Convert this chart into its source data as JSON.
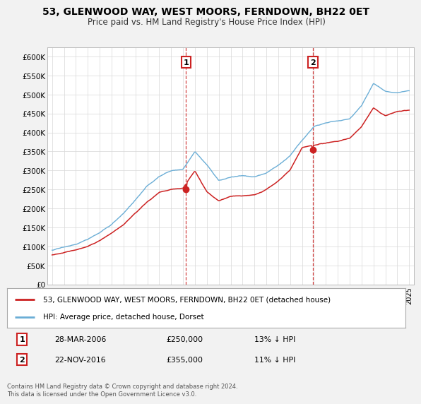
{
  "title": "53, GLENWOOD WAY, WEST MOORS, FERNDOWN, BH22 0ET",
  "subtitle": "Price paid vs. HM Land Registry's House Price Index (HPI)",
  "ylabel_ticks": [
    "£0",
    "£50K",
    "£100K",
    "£150K",
    "£200K",
    "£250K",
    "£300K",
    "£350K",
    "£400K",
    "£450K",
    "£500K",
    "£550K",
    "£600K"
  ],
  "ytick_values": [
    0,
    50000,
    100000,
    150000,
    200000,
    250000,
    300000,
    350000,
    400000,
    450000,
    500000,
    550000,
    600000
  ],
  "hpi_color": "#6baed6",
  "price_color": "#cc2222",
  "sale1_date": "28-MAR-2006",
  "sale1_price": 250000,
  "sale1_label": "13% ↓ HPI",
  "sale2_date": "22-NOV-2016",
  "sale2_price": 355000,
  "sale2_label": "11% ↓ HPI",
  "legend1": "53, GLENWOOD WAY, WEST MOORS, FERNDOWN, BH22 0ET (detached house)",
  "legend2": "HPI: Average price, detached house, Dorset",
  "footnote": "Contains HM Land Registry data © Crown copyright and database right 2024.\nThis data is licensed under the Open Government Licence v3.0.",
  "background_color": "#f2f2f2",
  "plot_bg_color": "#ffffff",
  "hpi_key_years": [
    1995,
    1996,
    1997,
    1998,
    1999,
    2000,
    2001,
    2002,
    2003,
    2004,
    2005,
    2006,
    2007,
    2008,
    2009,
    2010,
    2011,
    2012,
    2013,
    2014,
    2015,
    2016,
    2017,
    2018,
    2019,
    2020,
    2021,
    2022,
    2023,
    2024,
    2025
  ],
  "hpi_key_vals": [
    90000,
    97000,
    105000,
    118000,
    135000,
    158000,
    185000,
    220000,
    255000,
    280000,
    295000,
    300000,
    345000,
    310000,
    270000,
    278000,
    282000,
    278000,
    288000,
    308000,
    335000,
    375000,
    415000,
    425000,
    430000,
    435000,
    470000,
    530000,
    510000,
    505000,
    510000
  ],
  "price_key_years": [
    1995,
    1996,
    1997,
    1998,
    1999,
    2000,
    2001,
    2002,
    2003,
    2004,
    2005,
    2006,
    2007,
    2008,
    2009,
    2010,
    2011,
    2012,
    2013,
    2014,
    2015,
    2016,
    2017,
    2018,
    2019,
    2020,
    2021,
    2022,
    2023,
    2024,
    2025
  ],
  "price_key_vals": [
    77000,
    83000,
    90000,
    100000,
    113000,
    133000,
    155000,
    185000,
    215000,
    240000,
    248000,
    250000,
    295000,
    240000,
    215000,
    228000,
    228000,
    230000,
    243000,
    265000,
    295000,
    355000,
    360000,
    365000,
    370000,
    380000,
    410000,
    460000,
    440000,
    450000,
    455000
  ]
}
